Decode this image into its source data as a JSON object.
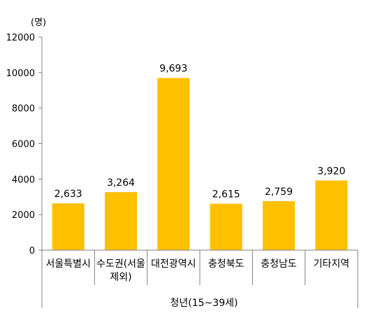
{
  "chart_data": {
    "type": "bar",
    "categories": [
      [
        "서울특별시"
      ],
      [
        "수도권(서울",
        "제외)"
      ],
      [
        "대전광역시"
      ],
      [
        "충청북도"
      ],
      [
        "충청남도"
      ],
      [
        "기타지역"
      ]
    ],
    "values": [
      2633,
      3264,
      9693,
      2615,
      2759,
      3920
    ],
    "value_labels": [
      "2,633",
      "3,264",
      "9,693",
      "2,615",
      "2,759",
      "3,920"
    ],
    "yticks": [
      "0",
      "2000",
      "4000",
      "6000",
      "8000",
      "10000",
      "12000"
    ],
    "ylim": [
      0,
      12000
    ],
    "unit": "(명)",
    "group_label": "청년(15~39세)",
    "bar_color": "#FFC000",
    "grid": false
  }
}
